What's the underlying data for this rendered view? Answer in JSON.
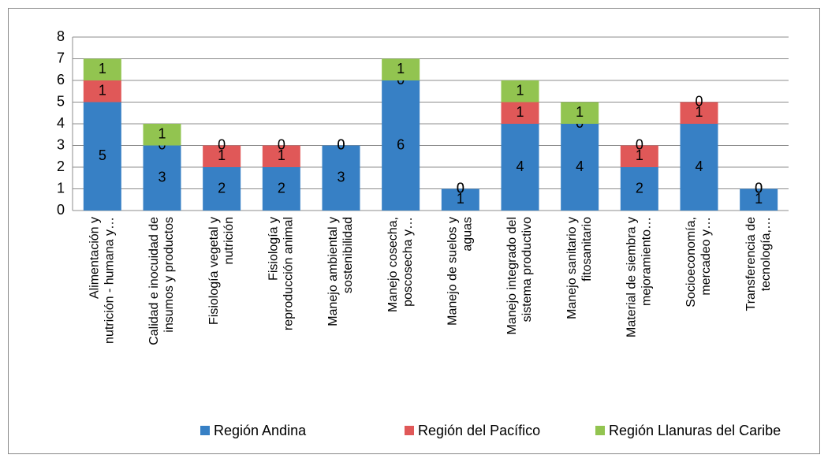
{
  "chart_data": {
    "type": "bar",
    "stacked": true,
    "categories": [
      [
        "Alimentación y",
        "nutrición - humana y…"
      ],
      [
        "Calidad e inocuidad de",
        "insumos y productos"
      ],
      [
        "Fisiología vegetal y",
        "nutrición"
      ],
      [
        "Fisiología y",
        "reproducción animal"
      ],
      [
        "Manejo ambiental y",
        "sostenibilidad"
      ],
      [
        "Manejo cosecha,",
        "poscosecha y…"
      ],
      [
        "Manejo de suelos y",
        "aguas"
      ],
      [
        "Manejo integrado del",
        "sistema productivo"
      ],
      [
        "Manejo sanitario y",
        "fitosanitario"
      ],
      [
        "Material de siembra y",
        "mejoramiento…"
      ],
      [
        "Socioeconomía,",
        "mercadeo y…"
      ],
      [
        "Transferencia de",
        "tecnología,…"
      ]
    ],
    "series": [
      {
        "name": "Región Andina",
        "color": "#3780c5",
        "values": [
          5,
          3,
          2,
          2,
          3,
          6,
          1,
          4,
          4,
          2,
          4,
          1
        ]
      },
      {
        "name": "Región del Pacífico",
        "color": "#e05858",
        "values": [
          1,
          0,
          1,
          1,
          0,
          0,
          0,
          1,
          0,
          1,
          1,
          0
        ]
      },
      {
        "name": "Región Llanuras del Caribe",
        "color": "#92c450",
        "values": [
          1,
          1,
          0,
          0,
          0,
          1,
          0,
          1,
          1,
          0,
          0,
          0
        ]
      }
    ],
    "ylim": [
      0,
      8
    ],
    "yticks": [
      0,
      1,
      2,
      3,
      4,
      5,
      6,
      7,
      8
    ],
    "grid": true,
    "legend": "bottom"
  }
}
